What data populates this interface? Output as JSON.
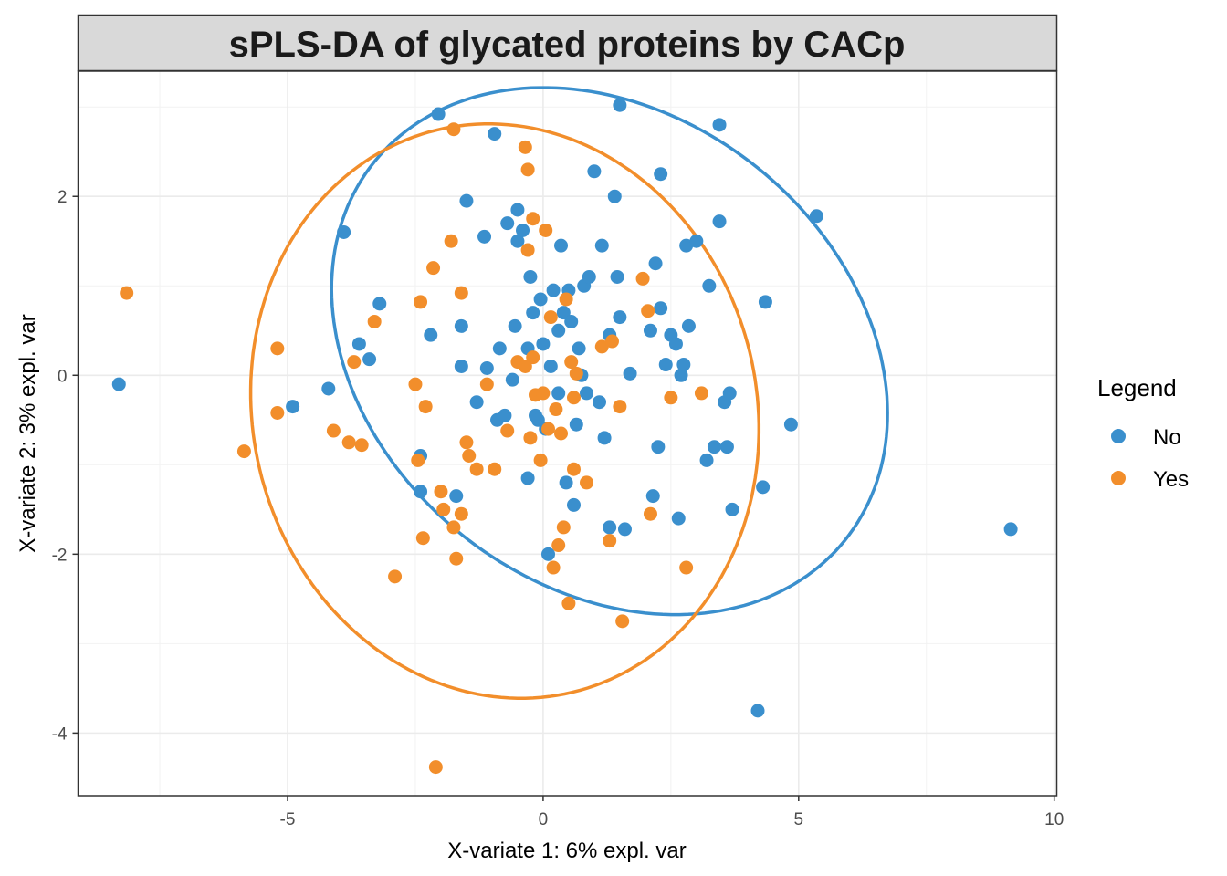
{
  "chart_data": {
    "type": "scatter",
    "title": "sPLS-DA of glycated proteins by CACp",
    "xlabel": "X-variate 1: 6% expl. var",
    "ylabel": "X-variate 2: 3% expl. var",
    "xlim": [
      -9.1,
      10.05
    ],
    "ylim": [
      -4.7,
      3.4
    ],
    "xticks": [
      -5,
      0,
      5,
      10
    ],
    "xtick_labels": [
      "-5",
      "0",
      "5",
      "10"
    ],
    "yticks": [
      -4,
      -2,
      0,
      2
    ],
    "ytick_labels": [
      "-4",
      "-2",
      "0",
      "2"
    ],
    "grid": true,
    "legend": {
      "title": "Legend",
      "position": "right"
    },
    "series": [
      {
        "name": "No",
        "color": "#3A8FCD",
        "ellipse": {
          "cx": 1.3,
          "cy": 0.27,
          "rx": 5.5,
          "ry": 2.83,
          "angle_deg": -10
        },
        "points": [
          [
            -8.3,
            -0.1
          ],
          [
            -4.9,
            -0.35
          ],
          [
            -4.2,
            -0.15
          ],
          [
            -3.9,
            1.6
          ],
          [
            -3.6,
            0.35
          ],
          [
            -3.4,
            0.18
          ],
          [
            -3.2,
            0.8
          ],
          [
            -2.4,
            -0.9
          ],
          [
            -2.4,
            -1.3
          ],
          [
            -2.2,
            0.45
          ],
          [
            -2.05,
            2.92
          ],
          [
            -1.7,
            -1.35
          ],
          [
            -1.6,
            0.1
          ],
          [
            -1.5,
            1.95
          ],
          [
            -1.6,
            0.55
          ],
          [
            -1.3,
            -0.3
          ],
          [
            -1.15,
            1.55
          ],
          [
            -1.1,
            0.08
          ],
          [
            -0.95,
            2.7
          ],
          [
            -0.9,
            -0.5
          ],
          [
            -0.85,
            0.3
          ],
          [
            -0.75,
            -0.45
          ],
          [
            -0.7,
            1.7
          ],
          [
            -0.6,
            -0.05
          ],
          [
            -0.55,
            0.55
          ],
          [
            -0.5,
            1.5
          ],
          [
            -0.5,
            1.85
          ],
          [
            -0.4,
            1.62
          ],
          [
            -0.3,
            -1.15
          ],
          [
            -0.25,
            1.1
          ],
          [
            -0.2,
            0.7
          ],
          [
            -0.15,
            -0.45
          ],
          [
            -0.1,
            -0.5
          ],
          [
            -0.05,
            0.85
          ],
          [
            0.0,
            0.35
          ],
          [
            0.05,
            -0.6
          ],
          [
            0.1,
            -2.0
          ],
          [
            0.15,
            0.1
          ],
          [
            0.2,
            0.95
          ],
          [
            0.3,
            -0.2
          ],
          [
            0.35,
            1.45
          ],
          [
            0.4,
            0.7
          ],
          [
            0.45,
            -1.2
          ],
          [
            0.5,
            0.95
          ],
          [
            0.55,
            0.6
          ],
          [
            0.6,
            -1.45
          ],
          [
            0.65,
            -0.55
          ],
          [
            0.7,
            0.3
          ],
          [
            0.75,
            0.0
          ],
          [
            0.8,
            1.0
          ],
          [
            0.85,
            -0.2
          ],
          [
            0.9,
            1.1
          ],
          [
            1.0,
            2.28
          ],
          [
            1.1,
            -0.3
          ],
          [
            1.15,
            1.45
          ],
          [
            1.2,
            -0.7
          ],
          [
            1.3,
            0.45
          ],
          [
            1.3,
            -1.7
          ],
          [
            1.4,
            2.0
          ],
          [
            1.45,
            1.1
          ],
          [
            1.5,
            3.02
          ],
          [
            1.5,
            0.65
          ],
          [
            1.6,
            -1.72
          ],
          [
            1.7,
            0.02
          ],
          [
            2.1,
            0.5
          ],
          [
            2.15,
            -1.35
          ],
          [
            2.2,
            1.25
          ],
          [
            2.25,
            -0.8
          ],
          [
            2.3,
            2.25
          ],
          [
            2.3,
            0.75
          ],
          [
            2.4,
            0.12
          ],
          [
            2.5,
            0.45
          ],
          [
            2.6,
            0.35
          ],
          [
            2.65,
            -1.6
          ],
          [
            2.7,
            0.0
          ],
          [
            2.75,
            0.12
          ],
          [
            2.8,
            1.45
          ],
          [
            2.85,
            0.55
          ],
          [
            3.0,
            1.5
          ],
          [
            3.2,
            -0.95
          ],
          [
            3.25,
            1.0
          ],
          [
            3.35,
            -0.8
          ],
          [
            3.45,
            2.8
          ],
          [
            3.45,
            1.72
          ],
          [
            3.55,
            -0.3
          ],
          [
            3.6,
            -0.8
          ],
          [
            3.65,
            -0.2
          ],
          [
            3.7,
            -1.5
          ],
          [
            4.2,
            -3.75
          ],
          [
            4.3,
            -1.25
          ],
          [
            4.35,
            0.82
          ],
          [
            4.85,
            -0.55
          ],
          [
            5.35,
            1.78
          ],
          [
            9.15,
            -1.72
          ],
          [
            -0.3,
            0.3
          ],
          [
            0.3,
            0.5
          ]
        ]
      },
      {
        "name": "Yes",
        "color": "#F28E2B",
        "ellipse": {
          "cx": -0.75,
          "cy": -0.4,
          "rx": 4.98,
          "ry": 3.2,
          "angle_deg": -4
        },
        "points": [
          [
            -8.15,
            0.92
          ],
          [
            -5.85,
            -0.85
          ],
          [
            -5.2,
            0.3
          ],
          [
            -5.2,
            -0.42
          ],
          [
            -4.1,
            -0.62
          ],
          [
            -3.8,
            -0.75
          ],
          [
            -3.7,
            0.15
          ],
          [
            -3.55,
            -0.78
          ],
          [
            -3.3,
            0.6
          ],
          [
            -2.9,
            -2.25
          ],
          [
            -2.5,
            -0.1
          ],
          [
            -2.45,
            -0.95
          ],
          [
            -2.4,
            0.82
          ],
          [
            -2.35,
            -1.82
          ],
          [
            -2.3,
            -0.35
          ],
          [
            -2.15,
            1.2
          ],
          [
            -2.1,
            -4.38
          ],
          [
            -2.0,
            -1.3
          ],
          [
            -1.95,
            -1.5
          ],
          [
            -1.8,
            1.5
          ],
          [
            -1.75,
            -1.7
          ],
          [
            -1.7,
            -2.05
          ],
          [
            -1.75,
            2.75
          ],
          [
            -1.6,
            -1.55
          ],
          [
            -1.6,
            0.92
          ],
          [
            -1.5,
            -0.75
          ],
          [
            -1.45,
            -0.9
          ],
          [
            -1.3,
            -1.05
          ],
          [
            -1.1,
            -0.1
          ],
          [
            -0.95,
            -1.05
          ],
          [
            -0.7,
            -0.62
          ],
          [
            -0.35,
            2.55
          ],
          [
            -0.3,
            2.3
          ],
          [
            -0.3,
            1.4
          ],
          [
            -0.25,
            -0.7
          ],
          [
            -0.2,
            1.75
          ],
          [
            -0.2,
            0.2
          ],
          [
            -0.15,
            -0.22
          ],
          [
            -0.05,
            -0.95
          ],
          [
            0.0,
            -0.2
          ],
          [
            0.05,
            1.62
          ],
          [
            0.1,
            -0.6
          ],
          [
            0.15,
            0.65
          ],
          [
            0.2,
            -2.15
          ],
          [
            0.25,
            -0.38
          ],
          [
            0.3,
            -1.9
          ],
          [
            0.35,
            -0.65
          ],
          [
            0.4,
            -1.7
          ],
          [
            0.45,
            0.85
          ],
          [
            0.5,
            -2.55
          ],
          [
            0.55,
            0.15
          ],
          [
            0.6,
            -1.05
          ],
          [
            0.6,
            -0.25
          ],
          [
            0.65,
            0.02
          ],
          [
            0.85,
            -1.2
          ],
          [
            1.15,
            0.32
          ],
          [
            1.3,
            -1.85
          ],
          [
            1.35,
            0.38
          ],
          [
            1.5,
            -0.35
          ],
          [
            1.55,
            -2.75
          ],
          [
            1.95,
            1.08
          ],
          [
            2.05,
            0.72
          ],
          [
            2.1,
            -1.55
          ],
          [
            2.5,
            -0.25
          ],
          [
            2.8,
            -2.15
          ],
          [
            3.1,
            -0.2
          ],
          [
            -0.5,
            0.15
          ],
          [
            -0.35,
            0.1
          ]
        ]
      }
    ]
  }
}
